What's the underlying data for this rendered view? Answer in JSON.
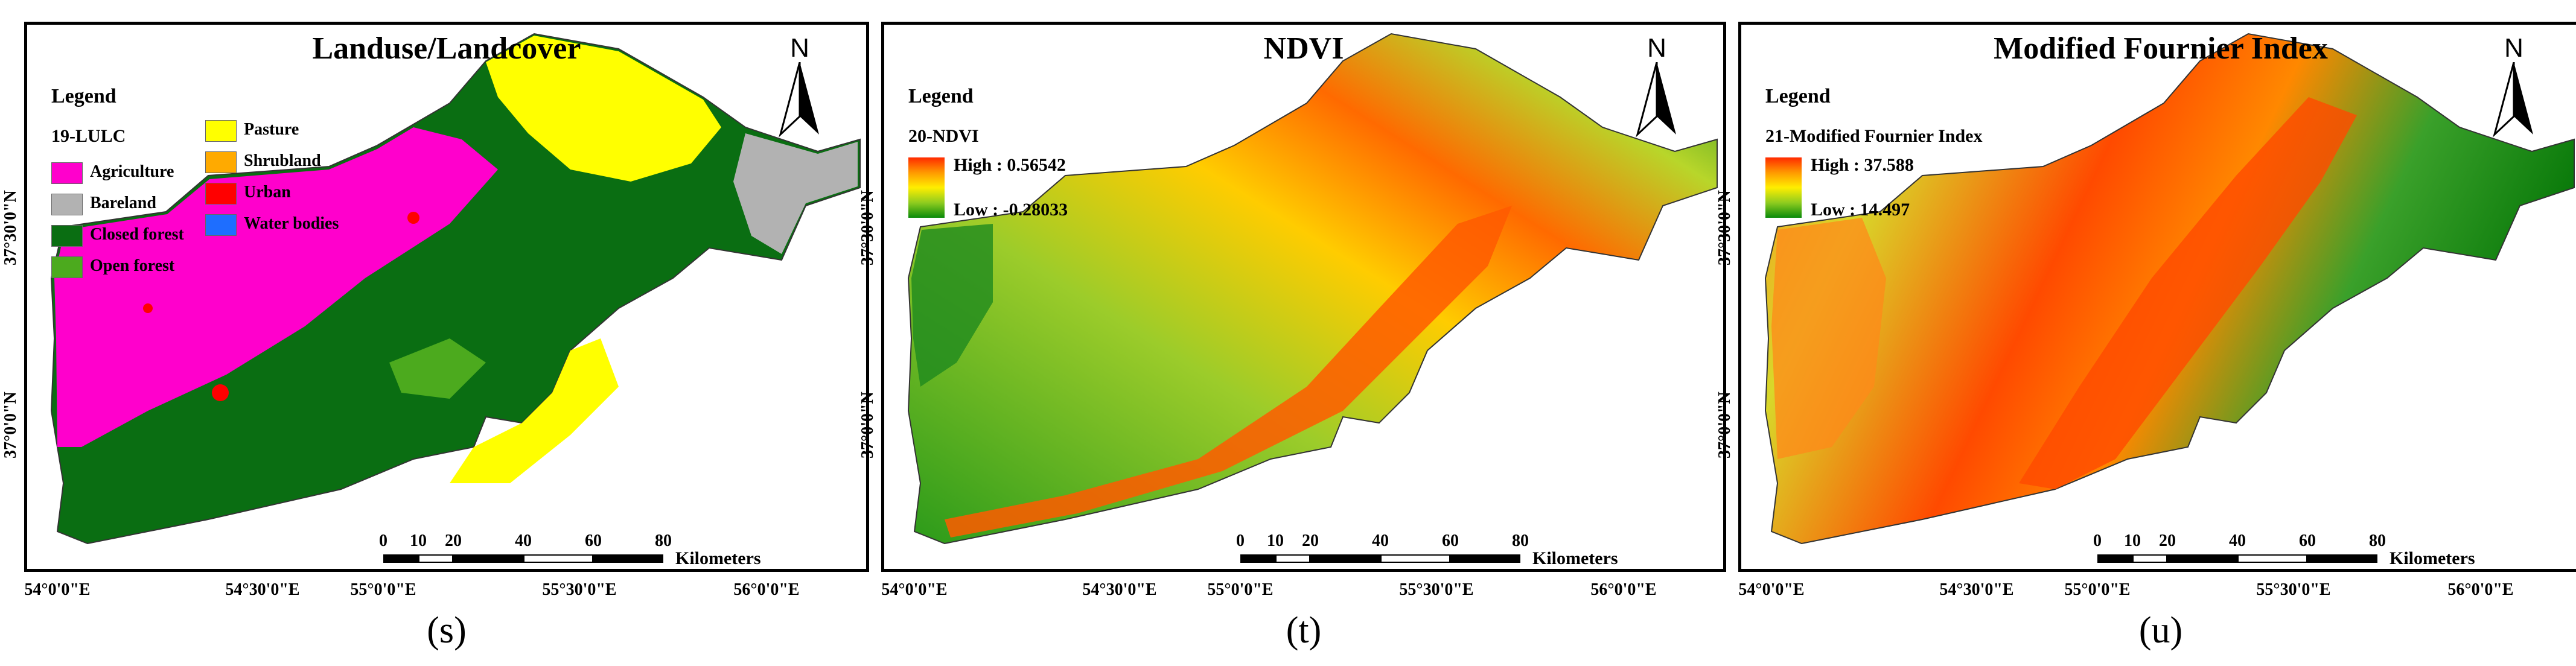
{
  "panels": [
    {
      "title": "Landuse/Landcover",
      "legend_heading": "Legend",
      "layer_label": "19-LULC",
      "caption": "(s)",
      "legend_items": [
        {
          "label": "Agriculture",
          "color": "#ff00cc"
        },
        {
          "label": "Bareland",
          "color": "#b2b2b2"
        },
        {
          "label": "Closed forest",
          "color": "#0a6e12"
        },
        {
          "label": "Open forest",
          "color": "#4caa1e"
        },
        {
          "label": "Pasture",
          "color": "#ffff00"
        },
        {
          "label": "Shrubland",
          "color": "#ffaa00"
        },
        {
          "label": "Urban",
          "color": "#ff0000"
        },
        {
          "label": "Water bodies",
          "color": "#1e6eff"
        }
      ]
    },
    {
      "title": "NDVI",
      "legend_heading": "Legend",
      "layer_label": "20-NDVI",
      "caption": "(t)",
      "high_label": "High : 0.56542",
      "low_label": "Low : -0.28033"
    },
    {
      "title": "Modified Fournier Index",
      "legend_heading": "Legend",
      "layer_label": "21-Modified Fournier Index",
      "caption": "(u)",
      "high_label": "High : 37.588",
      "low_label": "Low : 14.497"
    }
  ],
  "north_label": "N",
  "scale_ticks": [
    "0",
    "10",
    "20",
    "40",
    "60",
    "80"
  ],
  "scale_unit": "Kilometers",
  "lat_labels": [
    "37°30'0\"N",
    "37°0'0\"N"
  ],
  "lon_labels": [
    "54°0'0\"E",
    "54°30'0\"E",
    "55°0'0\"E",
    "55°30'0\"E",
    "56°0'0\"E"
  ],
  "colors": {
    "ramp_high": "#ff2a00",
    "ramp_mid": "#ffee00",
    "ramp_low": "#0a8a0a"
  }
}
